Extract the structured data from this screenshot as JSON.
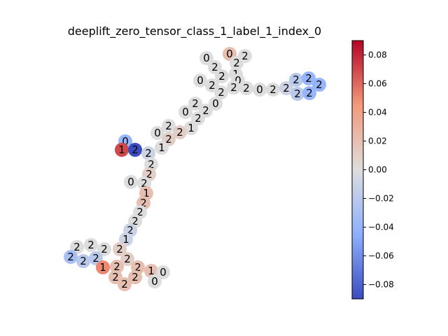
{
  "chart_data": {
    "type": "graph",
    "title": "deeplift_zero_tensor_class_1_label_1_index_0",
    "colorbar": {
      "min": -0.09,
      "max": 0.09,
      "ticks": [
        0.08,
        0.06,
        0.04,
        0.02,
        0.0,
        -0.02,
        -0.04,
        -0.06,
        -0.08
      ],
      "tick_labels": [
        "0.08",
        "0.06",
        "0.04",
        "0.02",
        "0.00",
        "−0.02",
        "−0.04",
        "−0.06",
        "−0.08"
      ],
      "colormap": "coolwarm"
    },
    "nodes": [
      {
        "label": "0",
        "value": 0.0,
        "px": [
          295,
          83
        ]
      },
      {
        "label": "0",
        "value": 0.02,
        "px": [
          328,
          77
        ]
      },
      {
        "label": "2",
        "value": 0.0,
        "px": [
          350,
          80
        ]
      },
      {
        "label": "2",
        "value": 0.0,
        "px": [
          307,
          96
        ]
      },
      {
        "label": "2",
        "value": 0.0,
        "px": [
          338,
          90
        ]
      },
      {
        "label": "1",
        "value": 0.0,
        "px": [
          337,
          106
        ]
      },
      {
        "label": "2",
        "value": 0.0,
        "px": [
          317,
          109
        ]
      },
      {
        "label": "0",
        "value": 0.0,
        "px": [
          286,
          115
        ]
      },
      {
        "label": "2",
        "value": 0.0,
        "px": [
          303,
          122
        ]
      },
      {
        "label": "0",
        "value": 0.0,
        "px": [
          340,
          115
        ]
      },
      {
        "label": "2",
        "value": 0.0,
        "px": [
          316,
          132
        ]
      },
      {
        "label": "2",
        "value": 0.0,
        "px": [
          334,
          125
        ]
      },
      {
        "label": "2",
        "value": 0.0,
        "px": [
          352,
          126
        ]
      },
      {
        "label": "0",
        "value": 0.0,
        "px": [
          371,
          128
        ]
      },
      {
        "label": "2",
        "value": 0.0,
        "px": [
          390,
          128
        ]
      },
      {
        "label": "2",
        "value": -0.01,
        "px": [
          409,
          126
        ]
      },
      {
        "label": "2",
        "value": -0.02,
        "px": [
          423,
          114
        ]
      },
      {
        "label": "2",
        "value": -0.04,
        "px": [
          441,
          112
        ]
      },
      {
        "label": "2",
        "value": -0.04,
        "px": [
          456,
          121
        ]
      },
      {
        "label": "2",
        "value": -0.02,
        "px": [
          425,
          134
        ]
      },
      {
        "label": "2",
        "value": -0.04,
        "px": [
          442,
          133
        ]
      },
      {
        "label": "0",
        "value": 0.0,
        "px": [
          308,
          148
        ]
      },
      {
        "label": "2",
        "value": 0.0,
        "px": [
          279,
          148
        ]
      },
      {
        "label": "2",
        "value": 0.0,
        "px": [
          294,
          158
        ]
      },
      {
        "label": "0",
        "value": 0.0,
        "px": [
          265,
          160
        ]
      },
      {
        "label": "2",
        "value": 0.0,
        "px": [
          283,
          169
        ]
      },
      {
        "label": "2",
        "value": 0.0,
        "px": [
          241,
          180
        ]
      },
      {
        "label": "1",
        "value": 0.0,
        "px": [
          273,
          183
        ]
      },
      {
        "label": "2",
        "value": 0.01,
        "px": [
          257,
          189
        ]
      },
      {
        "label": "0",
        "value": 0.0,
        "px": [
          225,
          190
        ]
      },
      {
        "label": "2",
        "value": 0.01,
        "px": [
          241,
          199
        ]
      },
      {
        "label": "0",
        "value": -0.04,
        "px": [
          179,
          202
        ]
      },
      {
        "label": "1",
        "value": 0.07,
        "px": [
          174,
          214
        ]
      },
      {
        "label": "2",
        "value": -0.09,
        "px": [
          193,
          214
        ]
      },
      {
        "label": "1",
        "value": 0.0,
        "px": [
          231,
          211
        ]
      },
      {
        "label": "2",
        "value": -0.01,
        "px": [
          212,
          219
        ]
      },
      {
        "label": "2",
        "value": 0.0,
        "px": [
          216,
          235
        ]
      },
      {
        "label": "2",
        "value": 0.01,
        "px": [
          213,
          249
        ]
      },
      {
        "label": "0",
        "value": 0.0,
        "px": [
          187,
          260
        ]
      },
      {
        "label": "2",
        "value": 0.0,
        "px": [
          206,
          262
        ]
      },
      {
        "label": "1",
        "value": 0.02,
        "px": [
          209,
          276
        ]
      },
      {
        "label": "2",
        "value": 0.02,
        "px": [
          205,
          290
        ]
      },
      {
        "label": "2",
        "value": 0.0,
        "px": [
          200,
          303
        ]
      },
      {
        "label": "2",
        "value": 0.0,
        "px": [
          193,
          316
        ]
      },
      {
        "label": "2",
        "value": -0.01,
        "px": [
          186,
          329
        ]
      },
      {
        "label": "1",
        "value": -0.01,
        "px": [
          180,
          342
        ]
      },
      {
        "label": "2",
        "value": 0.0,
        "px": [
          110,
          353
        ]
      },
      {
        "label": "2",
        "value": 0.0,
        "px": [
          130,
          350
        ]
      },
      {
        "label": "2",
        "value": 0.0,
        "px": [
          149,
          356
        ]
      },
      {
        "label": "2",
        "value": 0.01,
        "px": [
          171,
          356
        ]
      },
      {
        "label": "2",
        "value": -0.03,
        "px": [
          101,
          367
        ]
      },
      {
        "label": "2",
        "value": -0.02,
        "px": [
          119,
          373
        ]
      },
      {
        "label": "2",
        "value": -0.02,
        "px": [
          137,
          369
        ]
      },
      {
        "label": "2",
        "value": 0.01,
        "px": [
          182,
          370
        ]
      },
      {
        "label": "1",
        "value": 0.05,
        "px": [
          147,
          382
        ]
      },
      {
        "label": "2",
        "value": 0.02,
        "px": [
          167,
          381
        ]
      },
      {
        "label": "2",
        "value": 0.02,
        "px": [
          197,
          382
        ]
      },
      {
        "label": "1",
        "value": 0.02,
        "px": [
          216,
          387
        ]
      },
      {
        "label": "0",
        "value": 0.0,
        "px": [
          233,
          389
        ]
      },
      {
        "label": "2",
        "value": 0.02,
        "px": [
          165,
          396
        ]
      },
      {
        "label": "2",
        "value": 0.02,
        "px": [
          193,
          396
        ]
      },
      {
        "label": "2",
        "value": 0.02,
        "px": [
          178,
          406
        ]
      },
      {
        "label": "0",
        "value": 0.0,
        "px": [
          221,
          402
        ]
      }
    ]
  }
}
